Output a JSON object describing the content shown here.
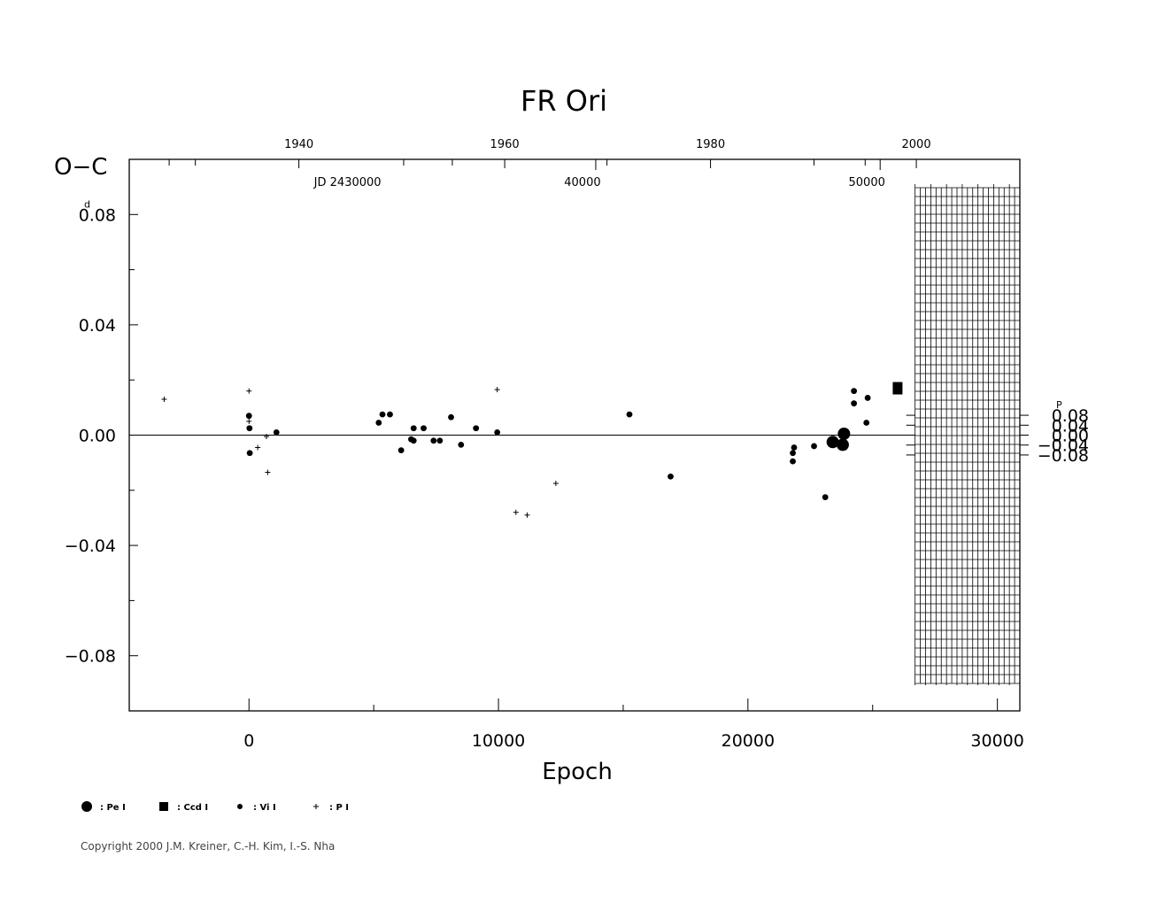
{
  "chart_data": {
    "type": "scatter",
    "title": "FR  Ori",
    "xlabel": "Epoch",
    "ylabel": "O−C",
    "ylabel_unit_left": "d",
    "ylabel_unit_right": "P",
    "xlim": [
      -4800,
      30900
    ],
    "ylim": [
      -0.1,
      0.1
    ],
    "x_ticks": [
      0,
      10000,
      20000,
      30000
    ],
    "x_tick_labels": [
      "0",
      "10000",
      "20000",
      "30000"
    ],
    "y_ticks_left": [
      0.08,
      0.04,
      0.0,
      -0.04,
      -0.08
    ],
    "y_tick_labels_left": [
      "0.08",
      "0.04",
      "0.00",
      "−0.04",
      "−0.08"
    ],
    "y_ticks_right_phase": [
      0.08,
      0.04,
      0.0,
      -0.04,
      -0.08
    ],
    "y_tick_labels_right": [
      "0.08",
      "0.04",
      "0.00",
      "−0.04",
      "−0.08"
    ],
    "right_axis_scale": 0.09,
    "top_axis_years": {
      "labels": [
        "1940",
        "1960",
        "1980",
        "2000"
      ],
      "epochs": [
        2000,
        10250,
        18500,
        26750
      ],
      "minor_epochs": [
        -3200,
        -2150,
        6200,
        8150,
        14350,
        22650,
        24700
      ]
    },
    "top_axis_jd": {
      "labels": [
        "JD  2430000",
        "40000",
        "50000"
      ],
      "epochs": [
        2000,
        13900,
        25300
      ],
      "ticks": [
        13900,
        25300
      ]
    },
    "grid_block": {
      "x_from": 26700,
      "x_to": 30900
    },
    "series": [
      {
        "name": "Pe",
        "marker": "large-circle",
        "points": [
          [
            23400,
            -0.0025
          ],
          [
            23800,
            -0.0035
          ],
          [
            23850,
            0.0005
          ]
        ]
      },
      {
        "name": "Ccd",
        "marker": "square",
        "points": [
          [
            26000,
            0.017
          ]
        ]
      },
      {
        "name": "Vi",
        "marker": "small-circle",
        "points": [
          [
            0,
            0.007
          ],
          [
            20,
            0.0025
          ],
          [
            30,
            -0.0065
          ],
          [
            1100,
            0.001
          ],
          [
            5200,
            0.0045
          ],
          [
            5350,
            0.0075
          ],
          [
            5650,
            0.0075
          ],
          [
            6100,
            -0.0055
          ],
          [
            6500,
            -0.0015
          ],
          [
            6600,
            -0.002
          ],
          [
            6600,
            0.0025
          ],
          [
            7000,
            0.0025
          ],
          [
            7400,
            -0.002
          ],
          [
            7650,
            -0.002
          ],
          [
            8100,
            0.0065
          ],
          [
            8500,
            -0.0035
          ],
          [
            9100,
            0.0025
          ],
          [
            9950,
            0.001
          ],
          [
            15250,
            0.0075
          ],
          [
            16900,
            -0.015
          ],
          [
            21800,
            -0.0065
          ],
          [
            21800,
            -0.0095
          ],
          [
            21850,
            -0.0045
          ],
          [
            22650,
            -0.004
          ],
          [
            23100,
            -0.0225
          ],
          [
            24250,
            0.016
          ],
          [
            24250,
            0.0115
          ],
          [
            24750,
            0.0045
          ],
          [
            24800,
            0.0135
          ]
        ]
      },
      {
        "name": "P",
        "marker": "plus",
        "points": [
          [
            -3400,
            0.013
          ],
          [
            0,
            0.016
          ],
          [
            0,
            0.005
          ],
          [
            350,
            -0.0045
          ],
          [
            700,
            -0.0005
          ],
          [
            750,
            -0.0135
          ],
          [
            9950,
            0.0165
          ],
          [
            10700,
            -0.028
          ],
          [
            11150,
            -0.029
          ],
          [
            12300,
            -0.0175
          ]
        ]
      }
    ],
    "legend": {
      "placement": "bottom-left",
      "items": [
        {
          "marker": "large-circle",
          "label": ": Pe  I"
        },
        {
          "marker": "square",
          "label": ": Ccd  I"
        },
        {
          "marker": "small-circle",
          "label": ": Vi  I"
        },
        {
          "marker": "plus",
          "label": ": P  I"
        }
      ]
    },
    "grid": false
  },
  "copyright": "Copyright 2000 J.M. Kreiner, C.-H. Kim, I.-S. Nha"
}
